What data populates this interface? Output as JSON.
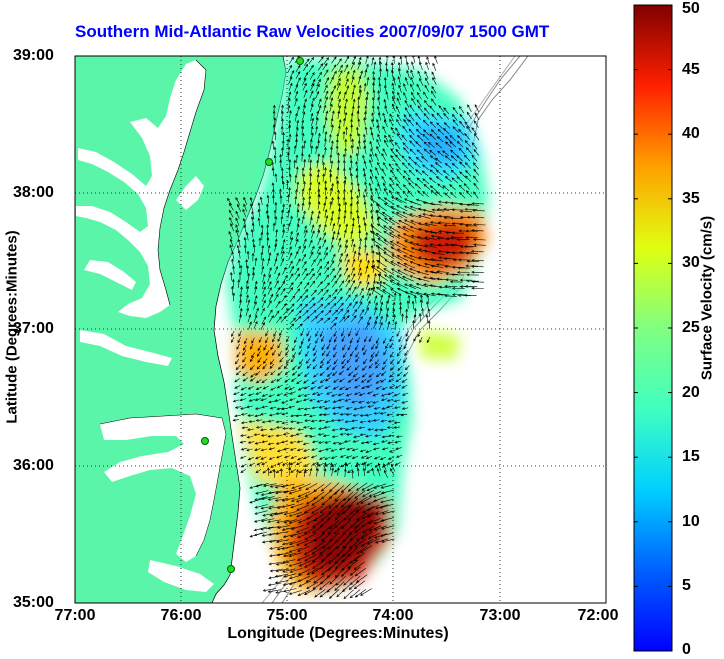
{
  "title": "Southern Mid-Atlantic Raw Velocities 2007/09/07 1500 GMT",
  "x_axis": {
    "label": "Longitude (Degrees:Minutes)",
    "ticks": [
      "77:00",
      "76:00",
      "75:00",
      "74:00",
      "73:00",
      "72:00"
    ]
  },
  "y_axis": {
    "label": "Latitude (Degrees:Minutes)",
    "ticks": [
      "39:00",
      "38:00",
      "37:00",
      "36:00",
      "35:00"
    ]
  },
  "colorbar": {
    "label": "Surface Velocity (cm/s)",
    "ticks": [
      "50",
      "45",
      "40",
      "35",
      "30",
      "25",
      "20",
      "15",
      "10",
      "5",
      "0"
    ],
    "range": [
      0,
      50
    ],
    "colormap": "jet"
  },
  "colors": {
    "land": "#5af5a8",
    "title": "#0000ff",
    "station": "#22dd22",
    "grid": "#000000"
  },
  "map": {
    "lon_range": [
      -77,
      -72
    ],
    "lat_range": [
      35,
      39
    ],
    "grid": "dotted",
    "features": [
      "land",
      "coastline",
      "bathymetry-contours",
      "hf-radar-stations",
      "velocity-field",
      "velocity-vectors"
    ]
  }
}
